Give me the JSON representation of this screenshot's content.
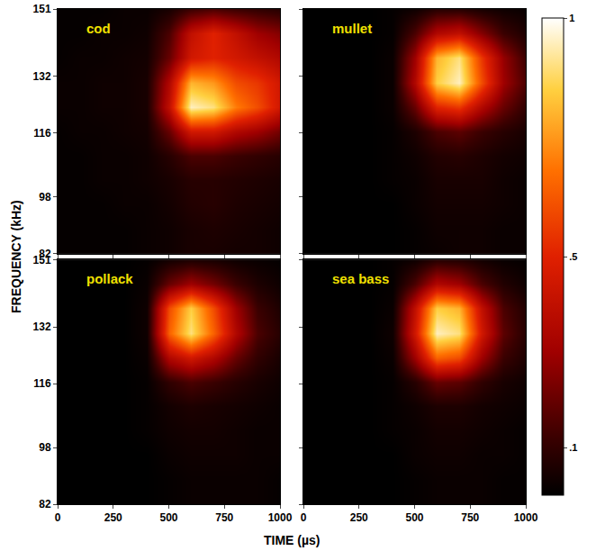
{
  "chart_data": {
    "type": "heatmap",
    "xlabel": "TIME (µs)",
    "ylabel": "FREQUENCY (kHz)",
    "xlim": [
      0,
      1000
    ],
    "ylim": [
      82,
      151
    ],
    "xticks": [
      0,
      250,
      500,
      750,
      1000
    ],
    "yticks": [
      82,
      98,
      116,
      132,
      151
    ],
    "x": [
      0,
      100,
      200,
      300,
      400,
      500,
      600,
      700,
      800,
      900,
      1000
    ],
    "y": [
      82,
      88.9,
      95.8,
      102.7,
      109.6,
      116.5,
      123.4,
      130.3,
      137.2,
      144.1,
      151
    ],
    "colorbar": {
      "range": [
        0,
        1
      ],
      "ticks": [
        {
          "value": 0.1,
          "label": ".1"
        },
        {
          "value": 0.5,
          "label": ".5"
        },
        1
      ]
    },
    "panels": [
      {
        "title": "cod",
        "z": [
          [
            0.01,
            0.01,
            0.01,
            0.01,
            0.02,
            0.03,
            0.05,
            0.05,
            0.04,
            0.04,
            0.03
          ],
          [
            0.01,
            0.01,
            0.01,
            0.01,
            0.02,
            0.03,
            0.05,
            0.06,
            0.05,
            0.04,
            0.03
          ],
          [
            0.01,
            0.01,
            0.01,
            0.02,
            0.02,
            0.04,
            0.07,
            0.08,
            0.06,
            0.05,
            0.04
          ],
          [
            0.01,
            0.01,
            0.02,
            0.02,
            0.03,
            0.05,
            0.08,
            0.08,
            0.07,
            0.06,
            0.05
          ],
          [
            0.01,
            0.01,
            0.02,
            0.02,
            0.03,
            0.08,
            0.15,
            0.15,
            0.12,
            0.1,
            0.08
          ],
          [
            0.01,
            0.02,
            0.02,
            0.03,
            0.04,
            0.2,
            0.45,
            0.45,
            0.35,
            0.3,
            0.22
          ],
          [
            0.02,
            0.02,
            0.03,
            0.03,
            0.05,
            0.4,
            0.95,
            0.9,
            0.7,
            0.6,
            0.45
          ],
          [
            0.02,
            0.02,
            0.03,
            0.03,
            0.05,
            0.35,
            0.8,
            0.75,
            0.6,
            0.55,
            0.45
          ],
          [
            0.01,
            0.02,
            0.02,
            0.03,
            0.04,
            0.2,
            0.45,
            0.5,
            0.45,
            0.4,
            0.35
          ],
          [
            0.01,
            0.01,
            0.02,
            0.02,
            0.03,
            0.15,
            0.4,
            0.5,
            0.4,
            0.3,
            0.25
          ],
          [
            0.01,
            0.01,
            0.01,
            0.02,
            0.02,
            0.05,
            0.12,
            0.15,
            0.12,
            0.1,
            0.08
          ]
        ]
      },
      {
        "title": "mullet",
        "z": [
          [
            0,
            0,
            0,
            0,
            0,
            0.01,
            0.02,
            0.03,
            0.03,
            0.02,
            0.02
          ],
          [
            0,
            0,
            0,
            0,
            0,
            0.01,
            0.03,
            0.03,
            0.03,
            0.02,
            0.02
          ],
          [
            0,
            0,
            0,
            0,
            0,
            0.02,
            0.04,
            0.04,
            0.04,
            0.03,
            0.02
          ],
          [
            0,
            0,
            0,
            0,
            0.01,
            0.02,
            0.05,
            0.05,
            0.05,
            0.03,
            0.02
          ],
          [
            0,
            0,
            0,
            0,
            0.01,
            0.03,
            0.07,
            0.08,
            0.06,
            0.04,
            0.03
          ],
          [
            0,
            0,
            0,
            0,
            0.01,
            0.06,
            0.15,
            0.18,
            0.12,
            0.08,
            0.05
          ],
          [
            0,
            0,
            0,
            0,
            0.02,
            0.2,
            0.5,
            0.55,
            0.35,
            0.2,
            0.1
          ],
          [
            0,
            0,
            0,
            0,
            0.02,
            0.35,
            0.85,
            0.95,
            0.6,
            0.3,
            0.15
          ],
          [
            0,
            0,
            0,
            0,
            0.02,
            0.3,
            0.8,
            0.9,
            0.55,
            0.28,
            0.12
          ],
          [
            0,
            0,
            0,
            0,
            0.01,
            0.15,
            0.35,
            0.4,
            0.25,
            0.12,
            0.06
          ],
          [
            0,
            0,
            0,
            0,
            0.01,
            0.03,
            0.08,
            0.08,
            0.05,
            0.03,
            0.02
          ]
        ]
      },
      {
        "title": "pollack",
        "z": [
          [
            0,
            0,
            0,
            0,
            0,
            0.01,
            0.02,
            0.02,
            0.02,
            0.02,
            0.01
          ],
          [
            0,
            0,
            0,
            0,
            0,
            0.01,
            0.02,
            0.02,
            0.02,
            0.02,
            0.01
          ],
          [
            0,
            0,
            0,
            0,
            0,
            0.02,
            0.03,
            0.03,
            0.03,
            0.02,
            0.02
          ],
          [
            0,
            0,
            0,
            0,
            0.01,
            0.03,
            0.04,
            0.04,
            0.03,
            0.02,
            0.02
          ],
          [
            0,
            0,
            0,
            0,
            0.01,
            0.04,
            0.06,
            0.05,
            0.04,
            0.03,
            0.02
          ],
          [
            0,
            0,
            0,
            0,
            0.01,
            0.1,
            0.15,
            0.12,
            0.08,
            0.05,
            0.03
          ],
          [
            0,
            0,
            0,
            0,
            0.02,
            0.35,
            0.45,
            0.35,
            0.2,
            0.1,
            0.05
          ],
          [
            0,
            0,
            0,
            0,
            0.03,
            0.65,
            0.9,
            0.65,
            0.35,
            0.15,
            0.08
          ],
          [
            0,
            0,
            0,
            0,
            0.03,
            0.6,
            0.85,
            0.6,
            0.3,
            0.12,
            0.06
          ],
          [
            0,
            0,
            0,
            0,
            0.02,
            0.2,
            0.3,
            0.22,
            0.12,
            0.06,
            0.03
          ],
          [
            0,
            0,
            0,
            0,
            0.01,
            0.04,
            0.06,
            0.05,
            0.03,
            0.02,
            0.01
          ]
        ]
      },
      {
        "title": "sea bass",
        "z": [
          [
            0,
            0,
            0,
            0,
            0,
            0.01,
            0.02,
            0.02,
            0.02,
            0.01,
            0.01
          ],
          [
            0,
            0,
            0,
            0,
            0,
            0.01,
            0.02,
            0.02,
            0.02,
            0.01,
            0.01
          ],
          [
            0,
            0,
            0,
            0,
            0,
            0.02,
            0.03,
            0.03,
            0.02,
            0.02,
            0.01
          ],
          [
            0,
            0,
            0,
            0,
            0.01,
            0.02,
            0.04,
            0.04,
            0.03,
            0.02,
            0.01
          ],
          [
            0,
            0,
            0,
            0,
            0.01,
            0.03,
            0.06,
            0.06,
            0.04,
            0.03,
            0.02
          ],
          [
            0,
            0,
            0,
            0,
            0.01,
            0.08,
            0.2,
            0.18,
            0.1,
            0.05,
            0.03
          ],
          [
            0,
            0,
            0,
            0,
            0.02,
            0.3,
            0.65,
            0.6,
            0.3,
            0.12,
            0.06
          ],
          [
            0,
            0,
            0,
            0,
            0.03,
            0.45,
            0.95,
            0.9,
            0.45,
            0.18,
            0.08
          ],
          [
            0,
            0,
            0,
            0,
            0.02,
            0.4,
            0.85,
            0.8,
            0.4,
            0.15,
            0.07
          ],
          [
            0,
            0,
            0,
            0,
            0.01,
            0.15,
            0.35,
            0.3,
            0.15,
            0.07,
            0.03
          ],
          [
            0,
            0,
            0,
            0,
            0.01,
            0.03,
            0.08,
            0.07,
            0.04,
            0.02,
            0.01
          ]
        ]
      }
    ]
  }
}
